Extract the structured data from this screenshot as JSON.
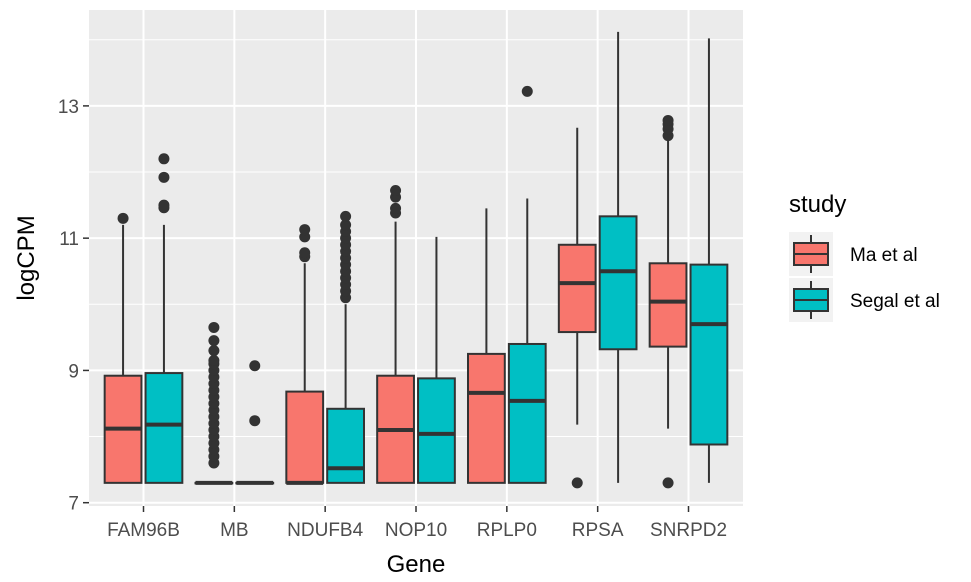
{
  "chart_data": {
    "type": "boxplot",
    "xlabel": "Gene",
    "ylabel": "logCPM",
    "ylim": [
      6.95,
      14.45
    ],
    "yticks": [
      7,
      9,
      11,
      13
    ],
    "categories": [
      "FAM96B",
      "MB",
      "NDUFB4",
      "NOP10",
      "RPLP0",
      "RPSA",
      "SNRPD2"
    ],
    "legend": {
      "title": "study",
      "position": "right"
    },
    "colors": {
      "Ma et al": "#F8766D",
      "Segal et al": "#00BFC4",
      "panel": "#EBEBEB",
      "grid": "#FFFFFF",
      "outline": "#333333"
    },
    "series": [
      {
        "name": "Ma et al",
        "boxes": [
          {
            "category": "FAM96B",
            "min": 7.3,
            "q1": 7.3,
            "median": 8.12,
            "q3": 8.92,
            "max": 11.2,
            "outliers": [
              11.3
            ]
          },
          {
            "category": "MB",
            "min": 7.3,
            "q1": 7.3,
            "median": 7.3,
            "q3": 7.3,
            "max": 7.3,
            "outliers": [
              7.6,
              7.7,
              7.8,
              7.9,
              8.0,
              8.1,
              8.2,
              8.3,
              8.4,
              8.5,
              8.6,
              8.7,
              8.8,
              8.9,
              9.0,
              9.1,
              9.15,
              9.3,
              9.45,
              9.65
            ]
          },
          {
            "category": "NDUFB4",
            "min": 7.3,
            "q1": 7.3,
            "median": 7.3,
            "q3": 8.68,
            "max": 10.62,
            "outliers": [
              10.72,
              10.78,
              11.02,
              11.13
            ]
          },
          {
            "category": "NOP10",
            "min": 7.3,
            "q1": 7.3,
            "median": 8.1,
            "q3": 8.92,
            "max": 11.25,
            "outliers": [
              11.38,
              11.45,
              11.62,
              11.72
            ]
          },
          {
            "category": "RPLP0",
            "min": 7.3,
            "q1": 7.3,
            "median": 8.66,
            "q3": 9.25,
            "max": 11.45,
            "outliers": []
          },
          {
            "category": "RPSA",
            "min": 8.18,
            "q1": 9.58,
            "median": 10.32,
            "q3": 10.9,
            "max": 12.67,
            "outliers": [
              7.3
            ]
          },
          {
            "category": "SNRPD2",
            "min": 8.12,
            "q1": 9.36,
            "median": 10.04,
            "q3": 10.62,
            "max": 12.5,
            "outliers": [
              7.3,
              12.55,
              12.65,
              12.72,
              12.78
            ]
          }
        ]
      },
      {
        "name": "Segal et al",
        "boxes": [
          {
            "category": "FAM96B",
            "min": 7.3,
            "q1": 7.3,
            "median": 8.18,
            "q3": 8.96,
            "max": 11.2,
            "outliers": [
              11.46,
              11.5,
              11.92,
              12.2
            ]
          },
          {
            "category": "MB",
            "min": 7.3,
            "q1": 7.3,
            "median": 7.3,
            "q3": 7.3,
            "max": 7.3,
            "outliers": [
              8.24,
              9.07
            ]
          },
          {
            "category": "NDUFB4",
            "min": 7.3,
            "q1": 7.3,
            "median": 7.52,
            "q3": 8.42,
            "max": 10.0,
            "outliers": [
              10.1,
              10.2,
              10.3,
              10.4,
              10.5,
              10.6,
              10.7,
              10.8,
              10.9,
              11.0,
              11.1,
              11.2,
              11.33
            ]
          },
          {
            "category": "NOP10",
            "min": 7.3,
            "q1": 7.3,
            "median": 8.04,
            "q3": 8.88,
            "max": 11.02,
            "outliers": []
          },
          {
            "category": "RPLP0",
            "min": 7.3,
            "q1": 7.3,
            "median": 8.54,
            "q3": 9.4,
            "max": 11.6,
            "outliers": [
              13.22
            ]
          },
          {
            "category": "RPSA",
            "min": 7.3,
            "q1": 9.32,
            "median": 10.5,
            "q3": 11.33,
            "max": 14.12,
            "outliers": []
          },
          {
            "category": "SNRPD2",
            "min": 7.3,
            "q1": 7.88,
            "median": 9.7,
            "q3": 10.6,
            "max": 14.02,
            "outliers": []
          }
        ]
      }
    ]
  }
}
